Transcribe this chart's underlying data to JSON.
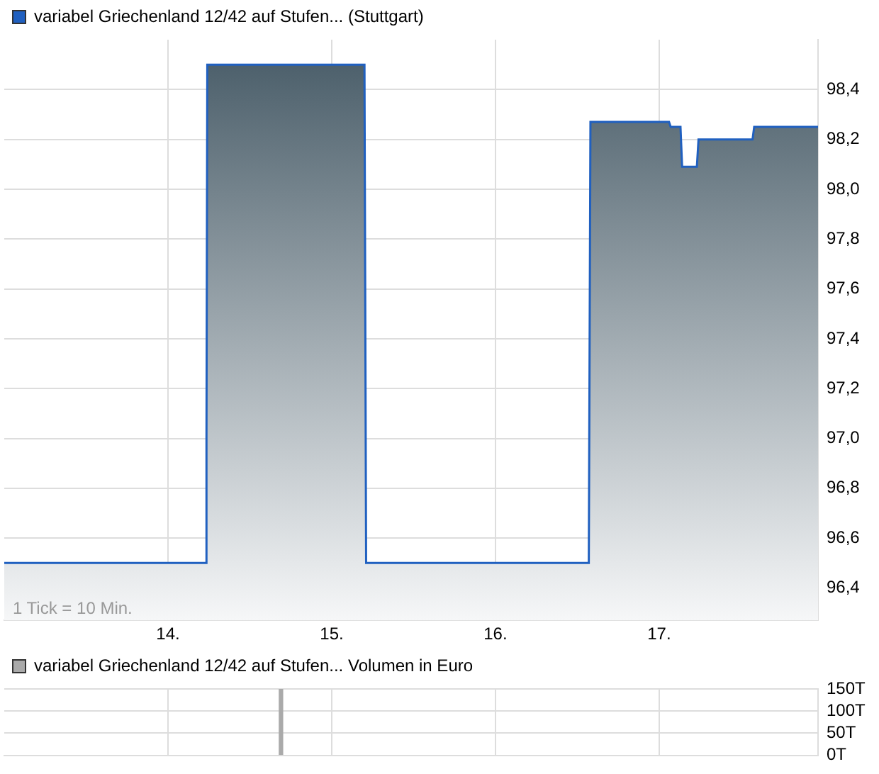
{
  "chart_data": [
    {
      "type": "area",
      "x": [
        13.0,
        14.23,
        14.235,
        14.24,
        15.2,
        15.21,
        16.57,
        16.58,
        17.06,
        17.07,
        17.13,
        17.14,
        17.23,
        17.24,
        17.57,
        17.58,
        17.97
      ],
      "series": [
        {
          "name": "variabel Griechenland 12/42 auf Stufen... (Stuttgart)",
          "color": "#2060c0",
          "values": [
            96.5,
            96.5,
            97.0,
            98.5,
            98.5,
            96.5,
            96.5,
            98.27,
            98.27,
            98.25,
            98.25,
            98.09,
            98.09,
            98.2,
            98.2,
            98.25,
            98.25
          ]
        }
      ],
      "xlim": [
        13.0,
        17.97
      ],
      "xticks": [
        {
          "value": 14,
          "label": "14."
        },
        {
          "value": 15,
          "label": "15."
        },
        {
          "value": 16,
          "label": "16."
        },
        {
          "value": 17,
          "label": "17."
        }
      ],
      "ylim": [
        96.27,
        98.6
      ],
      "yticks": [
        {
          "value": 96.4,
          "label": "96,4"
        },
        {
          "value": 96.6,
          "label": "96,6"
        },
        {
          "value": 96.8,
          "label": "96,8"
        },
        {
          "value": 97.0,
          "label": "97,0"
        },
        {
          "value": 97.2,
          "label": "97,2"
        },
        {
          "value": 97.4,
          "label": "97,4"
        },
        {
          "value": 97.6,
          "label": "97,6"
        },
        {
          "value": 97.8,
          "label": "97,8"
        },
        {
          "value": 98.0,
          "label": "98,0"
        },
        {
          "value": 98.2,
          "label": "98,2"
        },
        {
          "value": 98.4,
          "label": "98,4"
        }
      ],
      "grid": true,
      "legend": "top left",
      "annotations": [
        "1 Tick = 10 Min."
      ]
    },
    {
      "type": "bar",
      "x": [
        14.69
      ],
      "series": [
        {
          "name": "variabel Griechenland 12/42 auf Stufen... Volumen in Euro",
          "color": "#aaaaaa",
          "values": [
            150
          ]
        }
      ],
      "xlim": [
        13.0,
        17.97
      ],
      "xticks": [
        {
          "value": 14,
          "label": null
        },
        {
          "value": 15,
          "label": null
        },
        {
          "value": 16,
          "label": null
        },
        {
          "value": 17,
          "label": null
        }
      ],
      "ylim": [
        0,
        150
      ],
      "yticks": [
        {
          "value": 0,
          "label": "0T"
        },
        {
          "value": 50,
          "label": "50T"
        },
        {
          "value": 100,
          "label": "100T"
        },
        {
          "value": 150,
          "label": "150T"
        }
      ],
      "grid": true,
      "legend": "top left",
      "tick_labels": "y"
    }
  ]
}
